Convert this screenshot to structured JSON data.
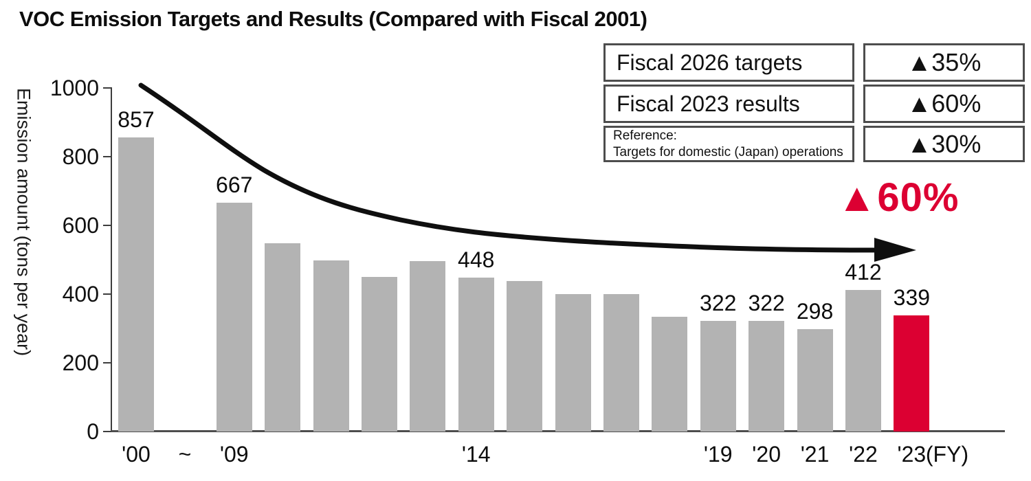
{
  "title": "VOC Emission Targets and Results (Compared with Fiscal 2001)",
  "chart_data": {
    "type": "bar",
    "title": "VOC Emission Targets and Results (Compared with Fiscal 2001)",
    "ylabel": "Emission amount (tons per year)",
    "x_axis_unit": "(FY)",
    "axis_break_symbol": "~",
    "ylim": [
      0,
      1000
    ],
    "yticks": [
      0,
      200,
      400,
      600,
      800,
      1000
    ],
    "grid": false,
    "bars": [
      {
        "year": "'00",
        "value": 857,
        "value_label": "857",
        "xtick": "'00"
      },
      {
        "year": "'09",
        "value": 667,
        "value_label": "667",
        "xtick": "'09"
      },
      {
        "year": "'10",
        "value": 548
      },
      {
        "year": "'11",
        "value": 498
      },
      {
        "year": "'12",
        "value": 450
      },
      {
        "year": "'13",
        "value": 497
      },
      {
        "year": "'14",
        "value": 448,
        "value_label": "448",
        "xtick": "'14"
      },
      {
        "year": "'15",
        "value": 438
      },
      {
        "year": "'16",
        "value": 400
      },
      {
        "year": "'17",
        "value": 400
      },
      {
        "year": "'18",
        "value": 335
      },
      {
        "year": "'19",
        "value": 322,
        "value_label": "322",
        "xtick": "'19"
      },
      {
        "year": "'20",
        "value": 322,
        "value_label": "322",
        "xtick": "'20"
      },
      {
        "year": "'21",
        "value": 298,
        "value_label": "298",
        "xtick": "'21"
      },
      {
        "year": "'22",
        "value": 412,
        "value_label": "412",
        "xtick": "'22"
      },
      {
        "year": "'23",
        "value": 339,
        "value_label": "339",
        "xtick": "'23",
        "highlight": true
      }
    ]
  },
  "table": {
    "rows": [
      {
        "label": "Fiscal 2026 targets",
        "value": "▲35%"
      },
      {
        "label": "Fiscal 2023 results",
        "value": "▲60%"
      },
      {
        "label_line1": "Reference:",
        "label_line2": "Targets for domestic (Japan) operations",
        "value": "▲30%"
      }
    ]
  },
  "annotation": {
    "big_text": "▲60%"
  },
  "colors": {
    "bar": "#b3b3b3",
    "highlight": "#dc0032",
    "axis": "#4d4d4d",
    "arrow": "#0f0f0f",
    "text": "#111111"
  }
}
